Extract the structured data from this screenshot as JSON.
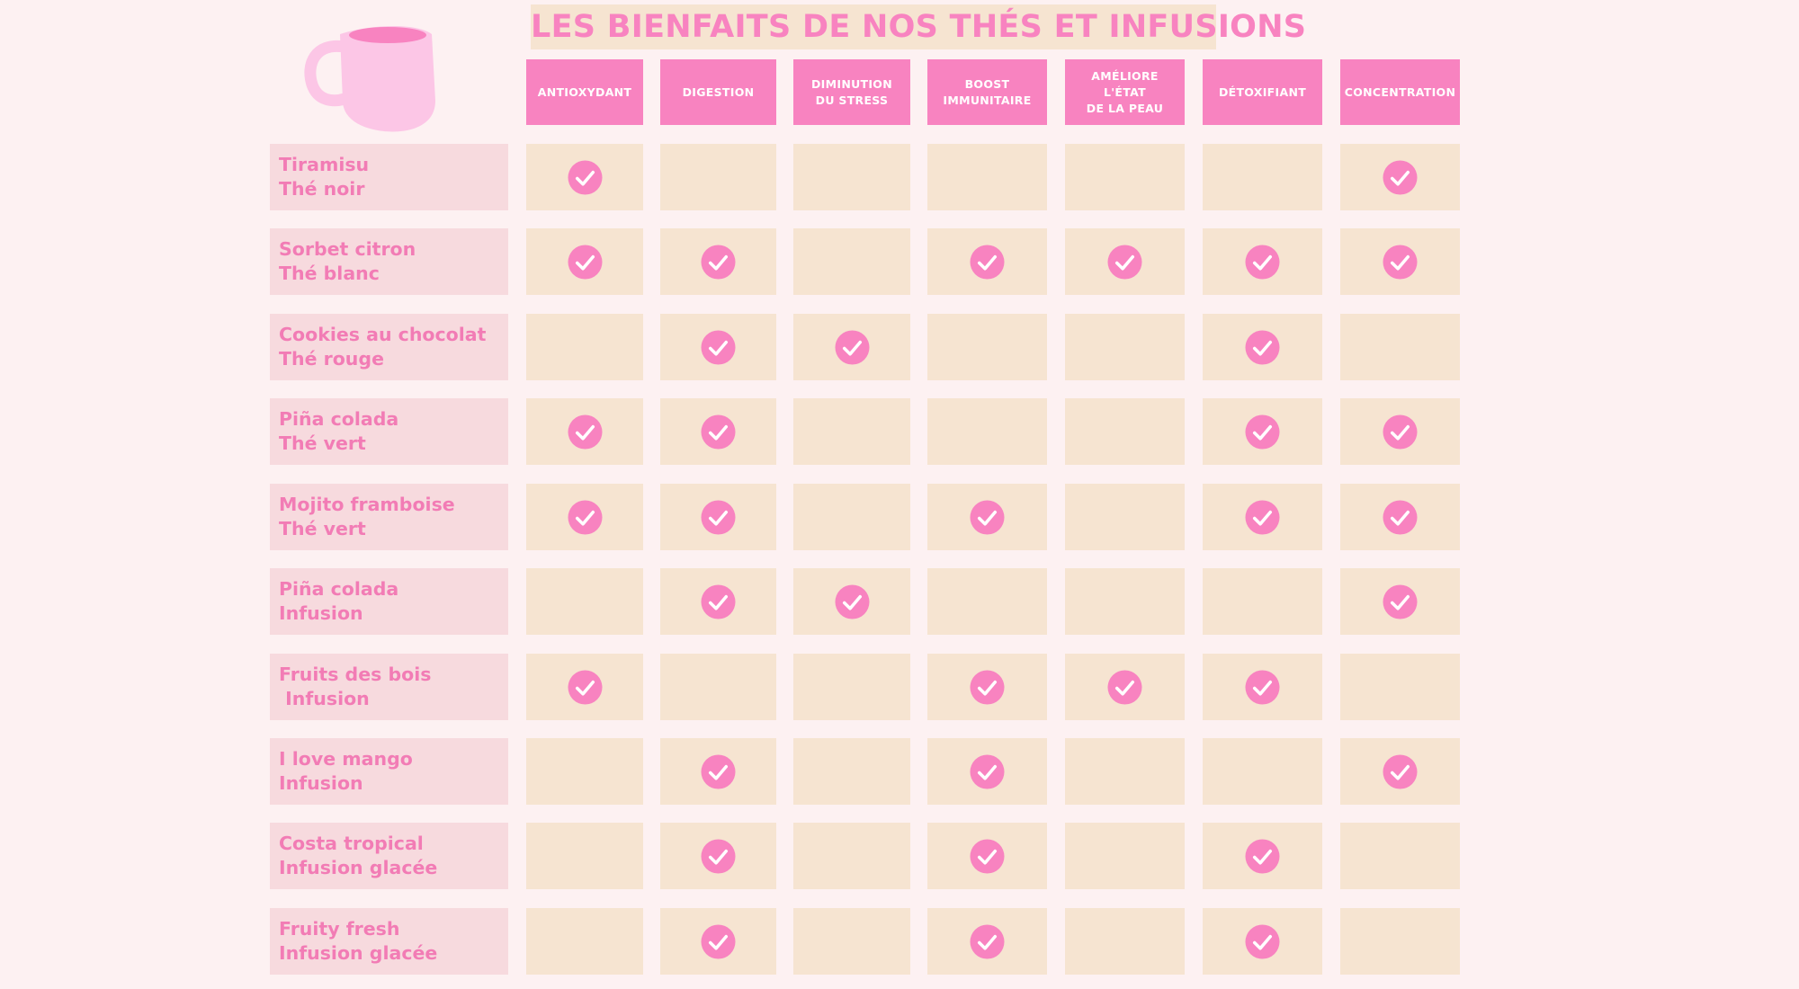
{
  "title": "LES BIENFAITS DE NOS THÉS ET INFUSIONS",
  "colors": {
    "background": "#fdf1f2",
    "accent_pink": "#f883c0",
    "label_bg": "#f7dade",
    "cell_bg": "#f6e4d1",
    "title_bg": "#f6e4d1"
  },
  "decoration": {
    "icon": "mug-icon"
  },
  "columns": [
    {
      "key": "antioxydant",
      "label": "ANTIOXYDANT"
    },
    {
      "key": "digestion",
      "label": "DIGESTION"
    },
    {
      "key": "stress",
      "label": "DIMINUTION\nDU STRESS"
    },
    {
      "key": "immunitaire",
      "label": "BOOST\nIMMUNITAIRE"
    },
    {
      "key": "peau",
      "label": "AMÉLIORE L'ÉTAT\nDE LA PEAU"
    },
    {
      "key": "detox",
      "label": "DÉTOXIFIANT"
    },
    {
      "key": "concentration",
      "label": "CONCENTRATION"
    }
  ],
  "rows": [
    {
      "name": "Tiramisu\nThé noir",
      "checks": [
        true,
        false,
        false,
        false,
        false,
        false,
        true
      ]
    },
    {
      "name": "Sorbet citron\nThé blanc",
      "checks": [
        true,
        true,
        false,
        true,
        true,
        true,
        true
      ]
    },
    {
      "name": "Cookies au chocolat\nThé rouge",
      "checks": [
        false,
        true,
        true,
        false,
        false,
        true,
        false
      ]
    },
    {
      "name": "Piña colada\nThé vert",
      "checks": [
        true,
        true,
        false,
        false,
        false,
        true,
        true
      ]
    },
    {
      "name": "Mojito framboise\nThé vert",
      "checks": [
        true,
        true,
        false,
        true,
        false,
        true,
        true
      ]
    },
    {
      "name": "Piña colada\nInfusion",
      "checks": [
        false,
        true,
        true,
        false,
        false,
        false,
        true
      ]
    },
    {
      "name": "Fruits des bois\n Infusion",
      "checks": [
        true,
        false,
        false,
        true,
        true,
        true,
        false
      ]
    },
    {
      "name": "I love mango\nInfusion",
      "checks": [
        false,
        true,
        false,
        true,
        false,
        false,
        true
      ]
    },
    {
      "name": "Costa tropical\nInfusion glacée",
      "checks": [
        false,
        true,
        false,
        true,
        false,
        true,
        false
      ]
    },
    {
      "name": "Fruity fresh\nInfusion glacée",
      "checks": [
        false,
        true,
        false,
        true,
        false,
        true,
        false
      ]
    }
  ]
}
